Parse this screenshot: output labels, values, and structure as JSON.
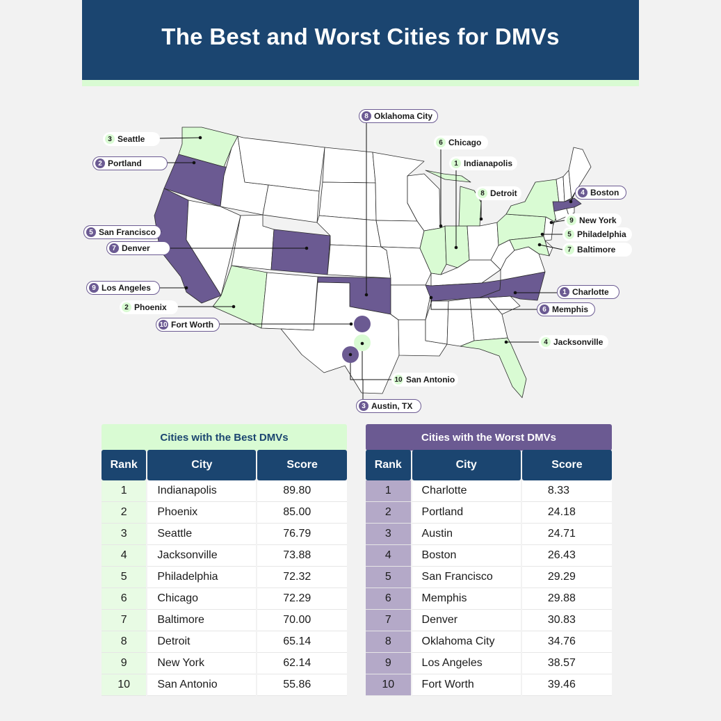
{
  "title": "The Best and Worst Cities for DMVs",
  "colors": {
    "header": "#1b4570",
    "best": "#d9fbd3",
    "worst": "#6b5a92",
    "neutral_state": "#ffffff",
    "state_border": "#2a2a2a"
  },
  "map": {
    "best_states": [
      "Washington",
      "Arizona",
      "Illinois",
      "Indiana",
      "Michigan",
      "Pennsylvania",
      "New York",
      "Maryland",
      "Florida"
    ],
    "worst_states": [
      "Oregon",
      "California",
      "Colorado",
      "Oklahoma",
      "Tennessee",
      "North Carolina",
      "Massachusetts"
    ],
    "callouts": [
      {
        "rank": "3",
        "city": "Seattle",
        "group": "best"
      },
      {
        "rank": "2",
        "city": "Portland",
        "group": "worst"
      },
      {
        "rank": "5",
        "city": "San Francisco",
        "group": "worst"
      },
      {
        "rank": "7",
        "city": "Denver",
        "group": "worst"
      },
      {
        "rank": "9",
        "city": "Los Angeles",
        "group": "worst"
      },
      {
        "rank": "2",
        "city": "Phoenix",
        "group": "best"
      },
      {
        "rank": "10",
        "city": "Fort Worth",
        "group": "worst"
      },
      {
        "rank": "8",
        "city": "Oklahoma City",
        "group": "worst"
      },
      {
        "rank": "6",
        "city": "Chicago",
        "group": "best"
      },
      {
        "rank": "1",
        "city": "Indianapolis",
        "group": "best"
      },
      {
        "rank": "8",
        "city": "Detroit",
        "group": "best"
      },
      {
        "rank": "4",
        "city": "Boston",
        "group": "worst"
      },
      {
        "rank": "9",
        "city": "New York",
        "group": "best"
      },
      {
        "rank": "5",
        "city": "Philadelphia",
        "group": "best"
      },
      {
        "rank": "7",
        "city": "Baltimore",
        "group": "best"
      },
      {
        "rank": "1",
        "city": "Charlotte",
        "group": "worst"
      },
      {
        "rank": "6",
        "city": "Memphis",
        "group": "worst"
      },
      {
        "rank": "4",
        "city": "Jacksonville",
        "group": "best"
      },
      {
        "rank": "10",
        "city": "San Antonio",
        "group": "best"
      },
      {
        "rank": "3",
        "city": "Austin, TX",
        "group": "worst"
      }
    ]
  },
  "best_table": {
    "title": "Cities with the Best DMVs",
    "headers": [
      "Rank",
      "City",
      "Score"
    ],
    "rows": [
      [
        "1",
        "Indianapolis",
        "89.80"
      ],
      [
        "2",
        "Phoenix",
        "85.00"
      ],
      [
        "3",
        "Seattle",
        "76.79"
      ],
      [
        "4",
        "Jacksonville",
        "73.88"
      ],
      [
        "5",
        "Philadelphia",
        "72.32"
      ],
      [
        "6",
        "Chicago",
        "72.29"
      ],
      [
        "7",
        "Baltimore",
        "70.00"
      ],
      [
        "8",
        "Detroit",
        "65.14"
      ],
      [
        "9",
        "New York",
        "62.14"
      ],
      [
        "10",
        "San Antonio",
        "55.86"
      ]
    ]
  },
  "worst_table": {
    "title": "Cities with the Worst DMVs",
    "headers": [
      "Rank",
      "City",
      "Score"
    ],
    "rows": [
      [
        "1",
        "Charlotte",
        "8.33"
      ],
      [
        "2",
        "Portland",
        "24.18"
      ],
      [
        "3",
        "Austin",
        "24.71"
      ],
      [
        "4",
        "Boston",
        "26.43"
      ],
      [
        "5",
        "San Francisco",
        "29.29"
      ],
      [
        "6",
        "Memphis",
        "29.88"
      ],
      [
        "7",
        "Denver",
        "30.83"
      ],
      [
        "8",
        "Oklahoma City",
        "34.76"
      ],
      [
        "9",
        "Los Angeles",
        "38.57"
      ],
      [
        "10",
        "Fort Worth",
        "39.46"
      ]
    ]
  }
}
